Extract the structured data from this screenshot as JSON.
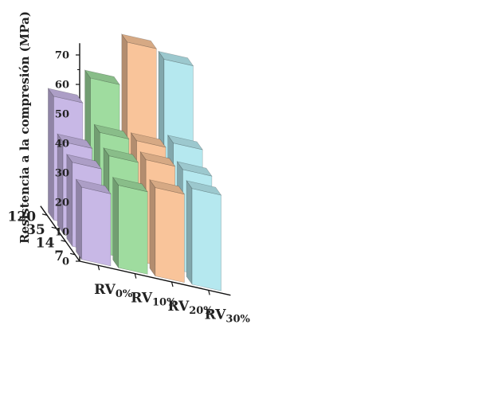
{
  "chart_data": {
    "type": "bar",
    "style": "3d",
    "ylabel": "Resistencia a la compresión (MPa)",
    "ylim": [
      0,
      70
    ],
    "yticks": [
      "0",
      "10",
      "20",
      "30",
      "40",
      "50",
      "60",
      "70"
    ],
    "categories": [
      "7",
      "14",
      "35",
      "120"
    ],
    "series": [
      {
        "name": "RV",
        "sub": "0%",
        "color": "#c8b8e6",
        "values": [
          24.5,
          28.5,
          31,
          42
        ]
      },
      {
        "name": "RV",
        "sub": "10%",
        "color": "#9fdc9f",
        "values": [
          28,
          33.5,
          37,
          51
        ]
      },
      {
        "name": "RV",
        "sub": "20%",
        "color": "#f9c49a",
        "values": [
          30,
          35,
          37,
          66
        ]
      },
      {
        "name": "RV",
        "sub": "30%",
        "color": "#b5e8ef",
        "values": [
          32.5,
          34.5,
          39,
          63
        ]
      }
    ]
  }
}
